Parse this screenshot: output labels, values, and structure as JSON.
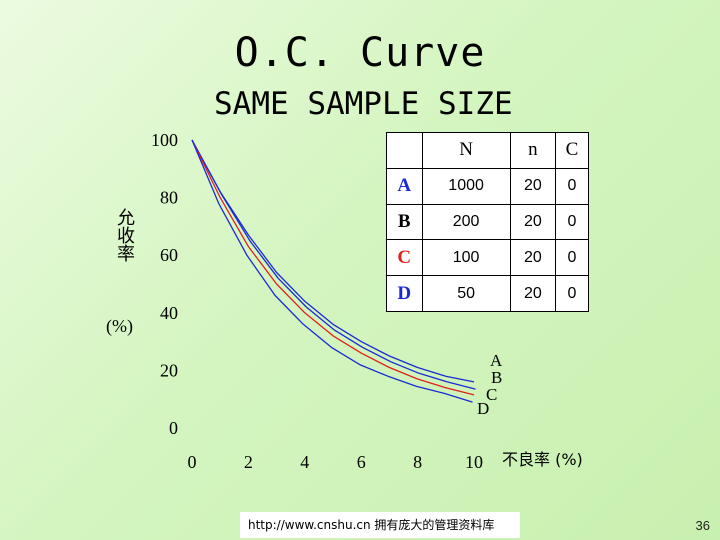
{
  "slide": {
    "title": "O.C. Curve",
    "subtitle": "SAME SAMPLE SIZE",
    "footer": "http://www.cnshu.cn  拥有庞大的管理资料库",
    "page_number": "36"
  },
  "table": {
    "headers": [
      "",
      "N",
      "n",
      "C"
    ],
    "rows": [
      {
        "label": "A",
        "color": "#1a2bd6",
        "N": "1000",
        "n": "20",
        "C": "0"
      },
      {
        "label": "B",
        "color": "#000000",
        "N": "200",
        "n": "20",
        "C": "0"
      },
      {
        "label": "C",
        "color": "#e0211c",
        "N": "100",
        "n": "20",
        "C": "0"
      },
      {
        "label": "D",
        "color": "#1a2bd6",
        "N": "50",
        "n": "20",
        "C": "0"
      }
    ]
  },
  "chart_data": {
    "type": "line",
    "title": "O.C. Curve",
    "subtitle": "SAME SAMPLE SIZE",
    "xlabel": "不良率 (%)",
    "ylabel": "允收率",
    "ylabel_unit": "(%)",
    "xlim": [
      0,
      10
    ],
    "ylim": [
      0,
      100
    ],
    "xticks": [
      0,
      2,
      4,
      6,
      8,
      10
    ],
    "yticks": [
      0,
      20,
      40,
      60,
      80,
      100
    ],
    "grid": false,
    "series": [
      {
        "name": "A",
        "color": "#1a2bd6",
        "x": [
          0,
          1,
          2,
          3,
          4,
          5,
          6,
          7,
          8,
          9,
          10
        ],
        "y": [
          100,
          82,
          67,
          54,
          44,
          36,
          30,
          25,
          21,
          18,
          16
        ]
      },
      {
        "name": "B",
        "color": "#1a2bd6",
        "x": [
          0,
          1,
          2,
          3,
          4,
          5,
          6,
          7,
          8,
          9,
          10
        ],
        "y": [
          100,
          81,
          65,
          52,
          42,
          34,
          28,
          23,
          19,
          16,
          13.5
        ]
      },
      {
        "name": "C",
        "color": "#e0211c",
        "x": [
          0,
          1,
          2,
          3,
          4,
          5,
          6,
          7,
          8,
          9,
          10
        ],
        "y": [
          100,
          80,
          63,
          50,
          40,
          32,
          26,
          21,
          17,
          14,
          11.5
        ]
      },
      {
        "name": "D",
        "color": "#1a2bd6",
        "x": [
          0,
          1,
          2,
          3,
          4,
          5,
          6,
          7,
          8,
          9,
          10
        ],
        "y": [
          100,
          78,
          60,
          46,
          36,
          28,
          22,
          18,
          14.5,
          12,
          9
        ]
      }
    ],
    "curve_labels": [
      {
        "text": "A",
        "color": "#1a2bd6"
      },
      {
        "text": "B",
        "color": "#000000"
      },
      {
        "text": "C",
        "color": "#e0211c"
      },
      {
        "text": "D",
        "color": "#1a2bd6"
      }
    ]
  }
}
